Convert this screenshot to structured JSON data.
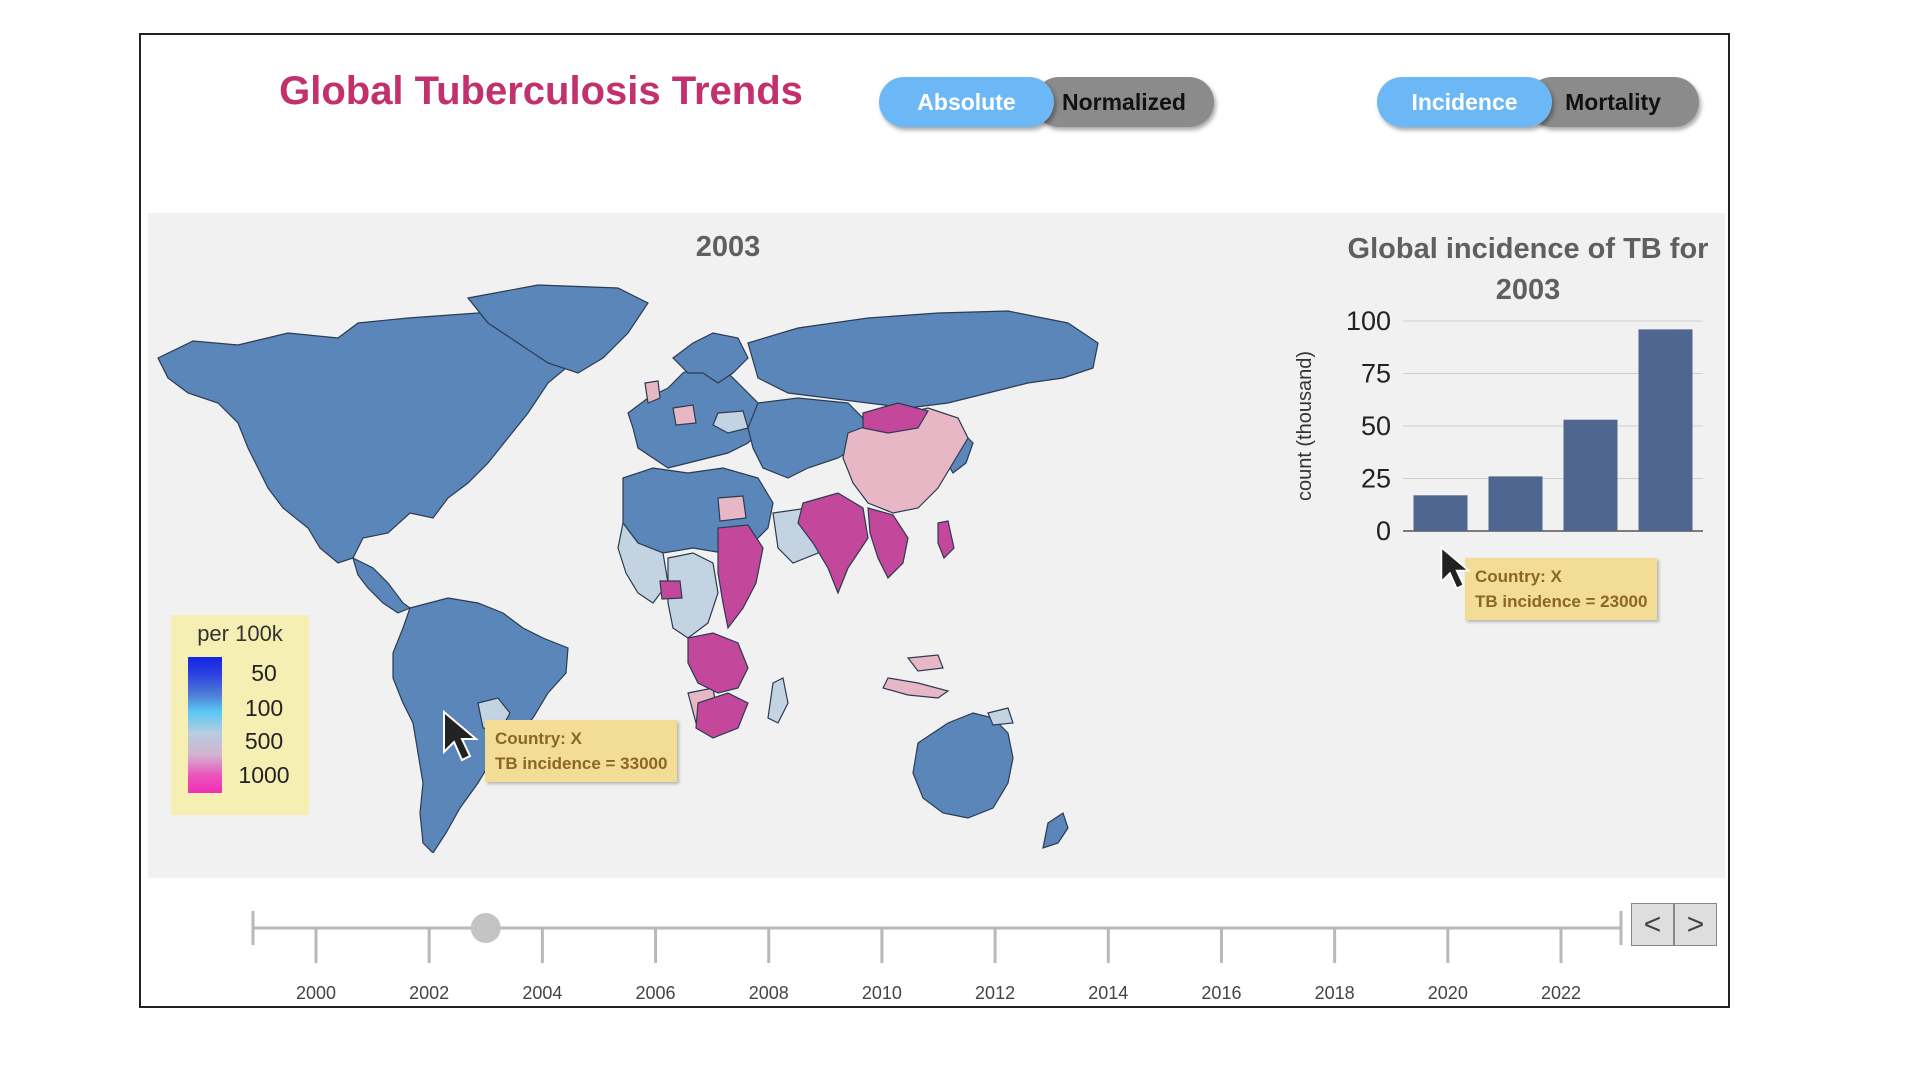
{
  "app": {
    "title": "Global Tuberculosis Trends"
  },
  "toggles": {
    "scale": {
      "active": "Absolute",
      "inactive": "Normalized"
    },
    "metric": {
      "active": "Incidence",
      "inactive": "Mortality"
    }
  },
  "map": {
    "year": "2003",
    "legend": {
      "title": "per 100k",
      "labels": [
        "50",
        "100",
        "500",
        "1000"
      ],
      "colors": [
        "#1425e8",
        "#59c7f5",
        "#d3b3cf",
        "#f02fb5"
      ]
    },
    "tooltip": {
      "country": "Country: X",
      "value": "TB incidence = 33000"
    },
    "colors": {
      "base": "#5a86b9",
      "light": "#c3d3e2",
      "pink": "#e8b7c6",
      "magenta": "#c3479a",
      "border": "#2b3b52"
    }
  },
  "chart": {
    "tooltip": {
      "country": "Country: X",
      "value": "TB incidence = 23000"
    }
  },
  "chart_data": {
    "type": "bar",
    "title": "Global incidence of TB for 2003",
    "ylabel": "count (thousand)",
    "xlabel": "",
    "categories": [
      "",
      "",
      "",
      ""
    ],
    "values": [
      17,
      26,
      53,
      96
    ],
    "ylim": [
      0,
      100
    ],
    "yticks": [
      "0",
      "25",
      "50",
      "75",
      "100"
    ],
    "bar_color": "#4f6690",
    "grid": true
  },
  "timeline": {
    "selected_year": 2003,
    "ticks": [
      "2000",
      "2002",
      "2004",
      "2006",
      "2008",
      "2010",
      "2012",
      "2014",
      "2016",
      "2018",
      "2020",
      "2022"
    ],
    "prev_label": "<",
    "next_label": ">"
  }
}
